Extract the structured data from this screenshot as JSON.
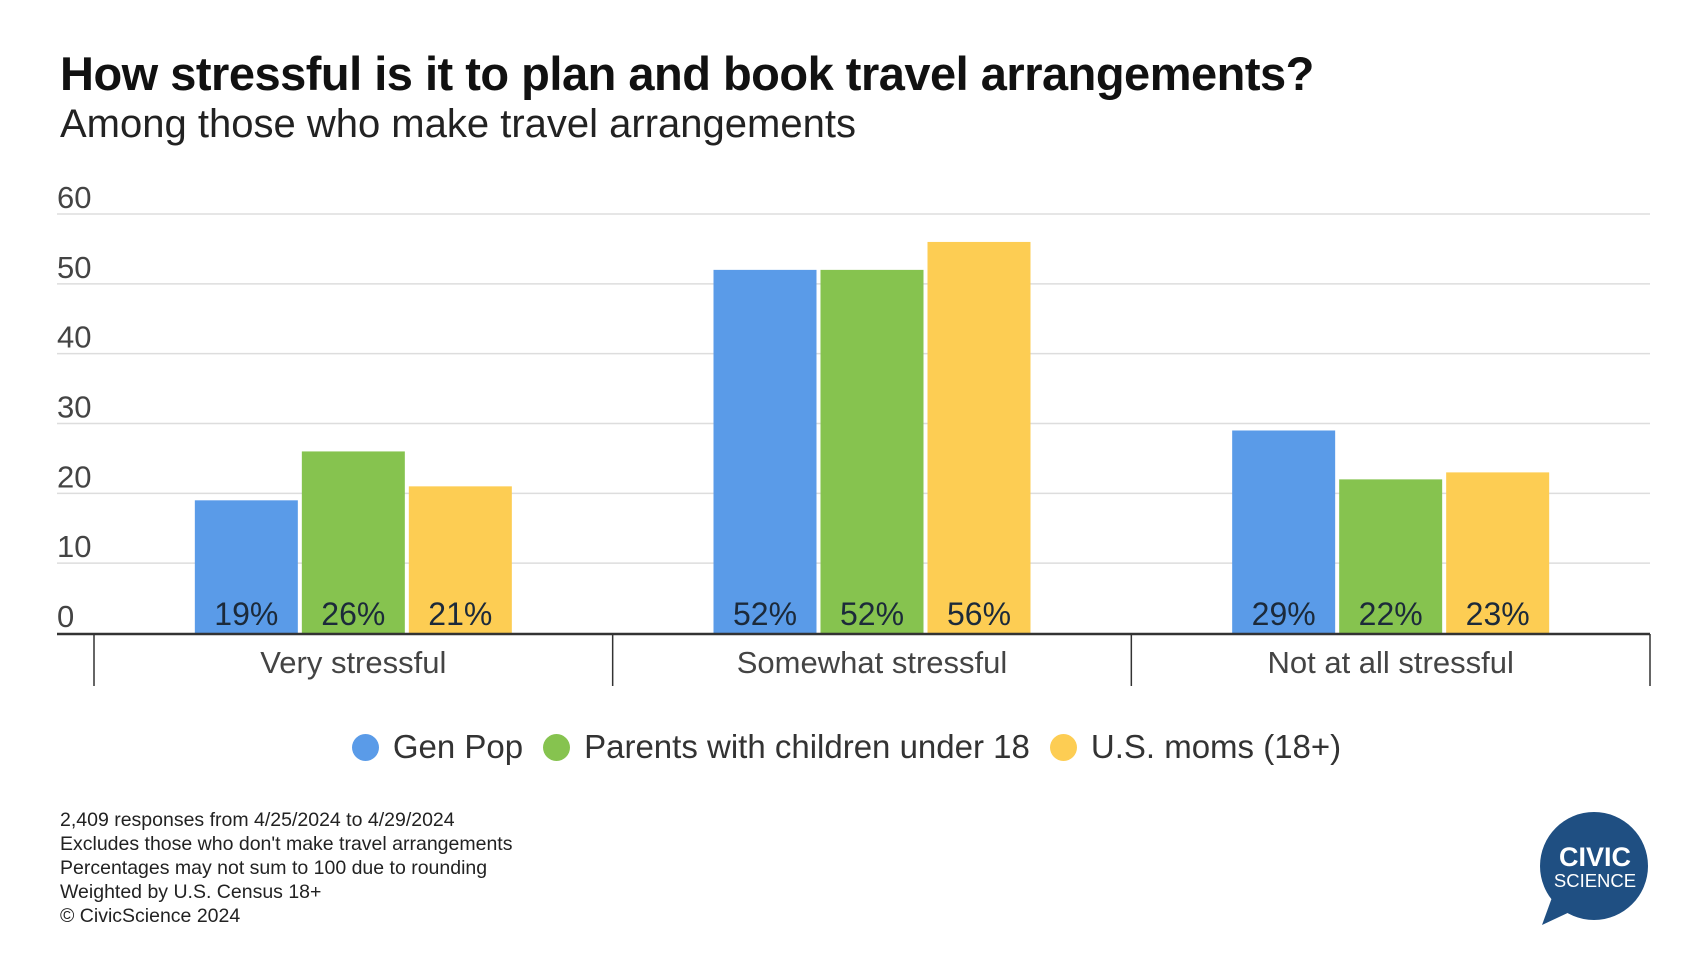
{
  "title": "How stressful is it to plan and book travel arrangements?",
  "subtitle": "Among those who make travel arrangements",
  "chart_data": {
    "type": "bar",
    "title": "How stressful is it to plan and book travel arrangements?",
    "subtitle": "Among those who make travel arrangements",
    "categories": [
      "Very stressful",
      "Somewhat stressful",
      "Not at all stressful"
    ],
    "series": [
      {
        "name": "Gen Pop",
        "color": "#5a9be8",
        "values": [
          19,
          52,
          29
        ],
        "labels": [
          "19%",
          "52%",
          "29%"
        ]
      },
      {
        "name": "Parents with children under 18",
        "color": "#86c34f",
        "values": [
          26,
          52,
          22
        ],
        "labels": [
          "26%",
          "52%",
          "22%"
        ]
      },
      {
        "name": "U.S. moms (18+)",
        "color": "#fdcd53",
        "values": [
          21,
          56,
          23
        ],
        "labels": [
          "21%",
          "56%",
          "23%"
        ]
      }
    ],
    "yticks": [
      "0",
      "10",
      "20",
      "30",
      "40",
      "50",
      "60"
    ],
    "ylim": [
      0,
      60
    ],
    "grid": true,
    "xlabel": "",
    "ylabel": "",
    "legend": "bottom-center"
  },
  "footnotes": [
    "2,409 responses from 4/25/2024 to 4/29/2024",
    "Excludes those who don't make travel arrangements",
    "Percentages may not sum to 100 due to rounding",
    "Weighted by U.S. Census 18+",
    "© CivicScience 2024"
  ],
  "logo": {
    "line1": "CIVIC",
    "line2": "SCIENCE",
    "color": "#1f4f82"
  }
}
